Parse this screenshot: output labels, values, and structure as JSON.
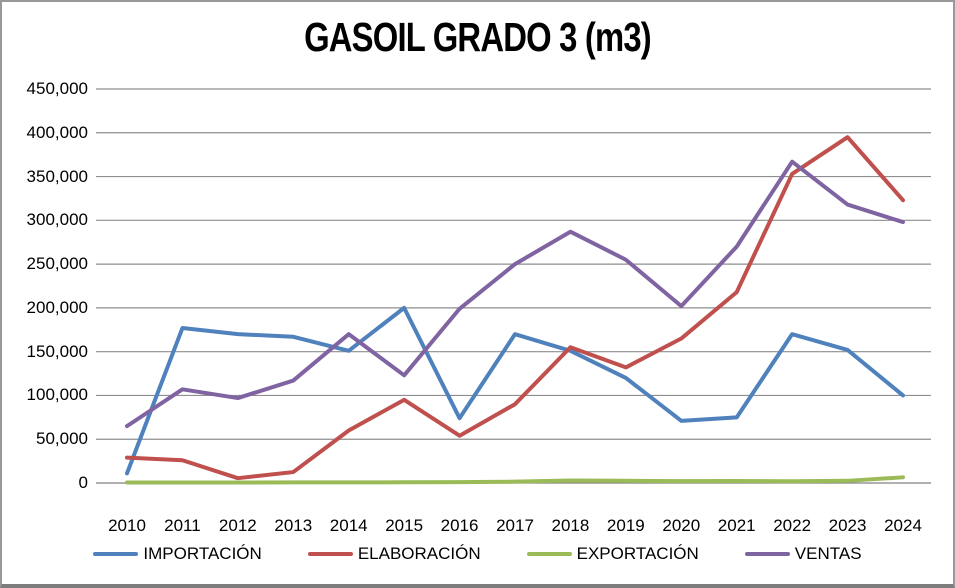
{
  "chart_data": {
    "type": "line",
    "title": "GASOIL GRADO 3 (m3)",
    "categories": [
      "2010",
      "2011",
      "2012",
      "2013",
      "2014",
      "2015",
      "2016",
      "2017",
      "2018",
      "2019",
      "2020",
      "2021",
      "2022",
      "2023",
      "2024"
    ],
    "xlabel": "",
    "ylabel": "",
    "ylim": [
      0,
      450000
    ],
    "ytick_step": 50000,
    "ytick_labels": [
      "0",
      "50,000",
      "100,000",
      "150,000",
      "200,000",
      "250,000",
      "300,000",
      "350,000",
      "400,000",
      "450,000"
    ],
    "grid": true,
    "legend_position": "bottom",
    "series": [
      {
        "name": "IMPORTACIÓN",
        "color": "#4F81BD",
        "values": [
          11000,
          177000,
          170000,
          167000,
          151000,
          200000,
          74000,
          170000,
          151000,
          120000,
          71000,
          75000,
          170000,
          152000,
          100000
        ]
      },
      {
        "name": "ELABORACIÓN",
        "color": "#C0504D",
        "values": [
          29000,
          26000,
          5500,
          12500,
          60000,
          95000,
          54000,
          90000,
          155000,
          132000,
          165000,
          218000,
          353000,
          395000,
          323000
        ]
      },
      {
        "name": "EXPORTACIÓN",
        "color": "#9BBB59",
        "values": [
          500,
          500,
          500,
          700,
          700,
          800,
          1000,
          1500,
          2800,
          2500,
          2200,
          2300,
          2000,
          2500,
          6500
        ]
      },
      {
        "name": "VENTAS",
        "color": "#8064A2",
        "values": [
          65000,
          107000,
          97000,
          117000,
          170000,
          123000,
          199000,
          250000,
          287000,
          255000,
          202000,
          270000,
          367000,
          318000,
          298000
        ]
      }
    ]
  },
  "colors": {
    "gridline": "#8E8E8E",
    "zero_axis": "#808080",
    "border": "#999999",
    "text": "#000000",
    "background": "#FFFFFF"
  },
  "layout_values": {
    "line_width": 4
  }
}
